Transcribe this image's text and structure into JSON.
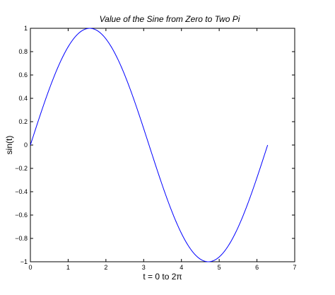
{
  "chart_data": {
    "type": "line",
    "title": "Value of the Sine from Zero to Two Pi",
    "xlabel": "t = 0 to 2π",
    "ylabel": "sin(t)",
    "xlim": [
      0,
      7
    ],
    "ylim": [
      -1,
      1
    ],
    "xticks": [
      0,
      1,
      2,
      3,
      4,
      5,
      6,
      7
    ],
    "xtick_labels": [
      "0",
      "1",
      "2",
      "3",
      "4",
      "5",
      "6",
      "7"
    ],
    "yticks": [
      -1,
      -0.8,
      -0.6,
      -0.4,
      -0.2,
      0,
      0.2,
      0.4,
      0.6,
      0.8,
      1
    ],
    "ytick_labels": [
      "−1",
      "−0.8",
      "−0.6",
      "−0.4",
      "−0.2",
      "0",
      "0.2",
      "0.4",
      "0.6",
      "0.8",
      "1"
    ],
    "grid": false,
    "series": [
      {
        "function": "sin(t)",
        "color": "#0000ff",
        "x_start": 0,
        "x_end": 6.2832,
        "samples": [
          [
            0,
            0
          ],
          [
            0.5,
            0.479
          ],
          [
            1,
            0.841
          ],
          [
            1.5708,
            1
          ],
          [
            2,
            0.909
          ],
          [
            2.5,
            0.598
          ],
          [
            3,
            0.141
          ],
          [
            3.1416,
            0
          ],
          [
            3.5,
            -0.351
          ],
          [
            4,
            -0.757
          ],
          [
            4.5,
            -0.978
          ],
          [
            4.7124,
            -1
          ],
          [
            5,
            -0.959
          ],
          [
            5.5,
            -0.706
          ],
          [
            6,
            -0.279
          ],
          [
            6.2832,
            0
          ]
        ]
      }
    ]
  }
}
